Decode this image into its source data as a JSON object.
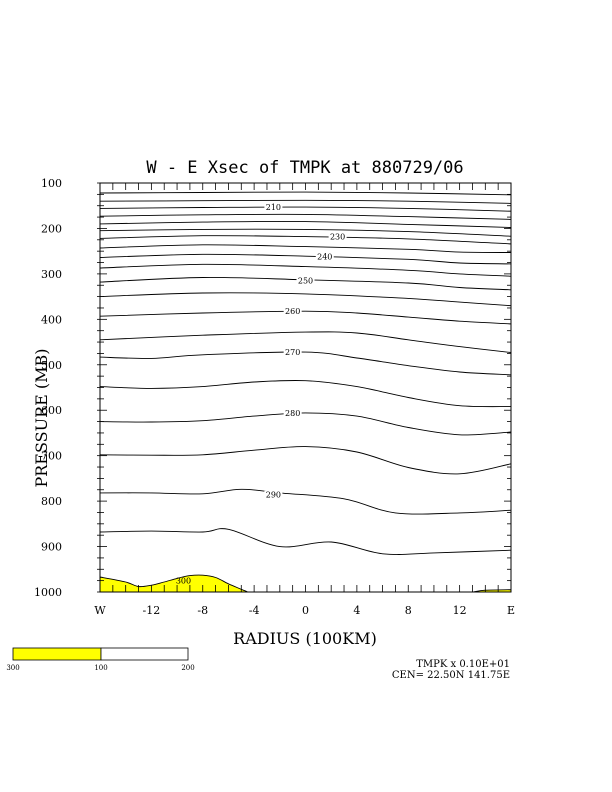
{
  "chart_data": {
    "type": "contour",
    "title": "W - E Xsec of TMPK at 880729/06",
    "xlabel": "RADIUS (100KM)",
    "ylabel": "PRESSURE (MB)",
    "x_tick_labels": [
      "W",
      "-12",
      "-8",
      "-4",
      "0",
      "4",
      "8",
      "12",
      "E"
    ],
    "x_tick_values": [
      -16,
      -12,
      -8,
      -4,
      0,
      4,
      8,
      12,
      16
    ],
    "y_tick_labels": [
      "100",
      "200",
      "300",
      "400",
      "500",
      "600",
      "700",
      "800",
      "900",
      "1000"
    ],
    "y_tick_values": [
      100,
      200,
      300,
      400,
      500,
      600,
      700,
      800,
      900,
      1000
    ],
    "xlim": [
      -16,
      16
    ],
    "ylim": [
      100,
      1000
    ],
    "contour_labels": [
      {
        "text": "210",
        "x": -2.5,
        "p": 153
      },
      {
        "text": "230",
        "x": 2.5,
        "p": 218
      },
      {
        "text": "240",
        "x": 1.5,
        "p": 262
      },
      {
        "text": "250",
        "x": 0.0,
        "p": 315
      },
      {
        "text": "260",
        "x": -1.0,
        "p": 382
      },
      {
        "text": "270",
        "x": -1.0,
        "p": 472
      },
      {
        "text": "280",
        "x": -1.0,
        "p": 606
      },
      {
        "text": "290",
        "x": -2.5,
        "p": 786
      },
      {
        "text": "300",
        "x": -9.5,
        "p": 975
      }
    ],
    "contours": [
      {
        "level": 200,
        "x": [
          -16,
          -8,
          0,
          8,
          16
        ],
        "p": [
          122,
          121,
          120,
          122,
          126
        ]
      },
      {
        "level": 205,
        "x": [
          -16,
          -8,
          0,
          8,
          16
        ],
        "p": [
          140,
          139,
          138,
          140,
          145
        ]
      },
      {
        "level": 210,
        "x": [
          -16,
          -8,
          0,
          8,
          16
        ],
        "p": [
          156,
          154,
          153,
          156,
          162
        ]
      },
      {
        "level": 215,
        "x": [
          -16,
          -8,
          0,
          8,
          16
        ],
        "p": [
          173,
          170,
          169,
          174,
          180
        ]
      },
      {
        "level": 220,
        "x": [
          -16,
          -8,
          0,
          8,
          16
        ],
        "p": [
          190,
          186,
          185,
          191,
          198
        ]
      },
      {
        "level": 225,
        "x": [
          -16,
          -8,
          0,
          8,
          16
        ],
        "p": [
          205,
          202,
          202,
          207,
          217
        ]
      },
      {
        "level": 230,
        "x": [
          -16,
          -8,
          0,
          8,
          16
        ],
        "p": [
          222,
          216,
          218,
          223,
          234
        ]
      },
      {
        "level": 235,
        "x": [
          -16,
          -8,
          0,
          8,
          12,
          16
        ],
        "p": [
          243,
          236,
          240,
          246,
          252,
          253
        ]
      },
      {
        "level": 240,
        "x": [
          -16,
          -8,
          0,
          8,
          12,
          16
        ],
        "p": [
          264,
          257,
          261,
          268,
          276,
          278
        ]
      },
      {
        "level": 245,
        "x": [
          -16,
          -8,
          0,
          8,
          12,
          16
        ],
        "p": [
          287,
          279,
          284,
          292,
          300,
          305
        ]
      },
      {
        "level": 250,
        "x": [
          -16,
          -8,
          0,
          8,
          12,
          16
        ],
        "p": [
          318,
          308,
          313,
          320,
          330,
          335
        ]
      },
      {
        "level": 255,
        "x": [
          -16,
          -8,
          0,
          8,
          12,
          16
        ],
        "p": [
          350,
          342,
          344,
          354,
          362,
          370
        ]
      },
      {
        "level": 260,
        "x": [
          -16,
          -8,
          0,
          4,
          8,
          12,
          16
        ],
        "p": [
          393,
          386,
          382,
          386,
          395,
          404,
          410
        ]
      },
      {
        "level": 265,
        "x": [
          -16,
          -8,
          0,
          4,
          8,
          12,
          16
        ],
        "p": [
          445,
          435,
          428,
          430,
          445,
          460,
          473
        ]
      },
      {
        "level": 270,
        "x": [
          -16,
          -12,
          -8,
          0,
          4,
          8,
          12,
          16
        ],
        "p": [
          483,
          486,
          478,
          472,
          485,
          502,
          516,
          522
        ]
      },
      {
        "level": 275,
        "x": [
          -16,
          -12,
          -8,
          -4,
          0,
          4,
          8,
          12,
          16
        ],
        "p": [
          548,
          552,
          548,
          538,
          535,
          548,
          572,
          590,
          592
        ]
      },
      {
        "level": 280,
        "x": [
          -16,
          -12,
          -8,
          -4,
          0,
          4,
          8,
          12,
          16
        ],
        "p": [
          625,
          626,
          623,
          613,
          606,
          613,
          638,
          654,
          648
        ]
      },
      {
        "level": 285,
        "x": [
          -16,
          -12,
          -8,
          -4,
          0,
          4,
          8,
          12,
          16
        ],
        "p": [
          698,
          699,
          698,
          688,
          680,
          692,
          726,
          740,
          718
        ]
      },
      {
        "level": 290,
        "x": [
          -16,
          -12,
          -8,
          -5,
          -2,
          3,
          7,
          12,
          16
        ],
        "p": [
          782,
          782,
          784,
          774,
          782,
          795,
          826,
          826,
          820
        ]
      },
      {
        "level": 295,
        "x": [
          -16,
          -12,
          -8,
          -6,
          -2,
          2,
          6,
          10,
          16
        ],
        "p": [
          868,
          866,
          868,
          862,
          900,
          890,
          916,
          914,
          908
        ]
      }
    ],
    "shaded_region": {
      "label": "300",
      "color": "#ffff00",
      "x": [
        -16,
        -14,
        -13,
        -12,
        -11,
        -10,
        -9,
        -8,
        -7,
        -6,
        -5,
        -4.5
      ],
      "p": [
        967,
        978,
        988,
        985,
        978,
        970,
        964,
        963,
        968,
        982,
        994,
        1000
      ]
    },
    "shaded_region_east": {
      "color": "#ffff00",
      "x": [
        13,
        14,
        16
      ],
      "p": [
        1000,
        996,
        995
      ]
    },
    "colorbar": {
      "colors": [
        "#ffff00",
        "#ffffff"
      ],
      "labels": [
        "300",
        "100",
        "200"
      ]
    },
    "footer": {
      "line1": "TMPK x  0.10E+01",
      "line2": "CEN= 22.50N  141.75E"
    }
  }
}
